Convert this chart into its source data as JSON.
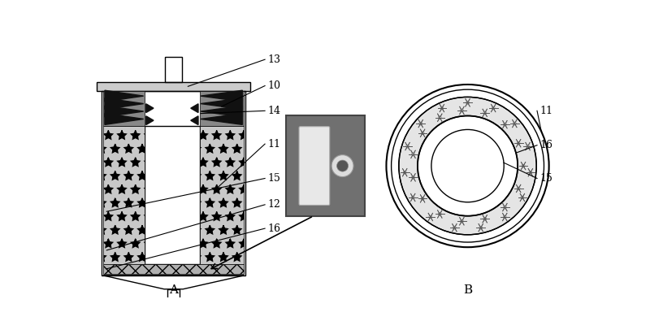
{
  "bg_color": "#ffffff",
  "line_color": "#000000",
  "lc_dark": "#222222",
  "gray_fill": "#aaaaaa",
  "dark_gray": "#888888",
  "light_gray": "#cccccc",
  "granular_color": "#c8c8c8",
  "crosshatch_color": "#b0b0b0",
  "photo_bg": "#707070",
  "label_A": "A",
  "label_B": "B"
}
